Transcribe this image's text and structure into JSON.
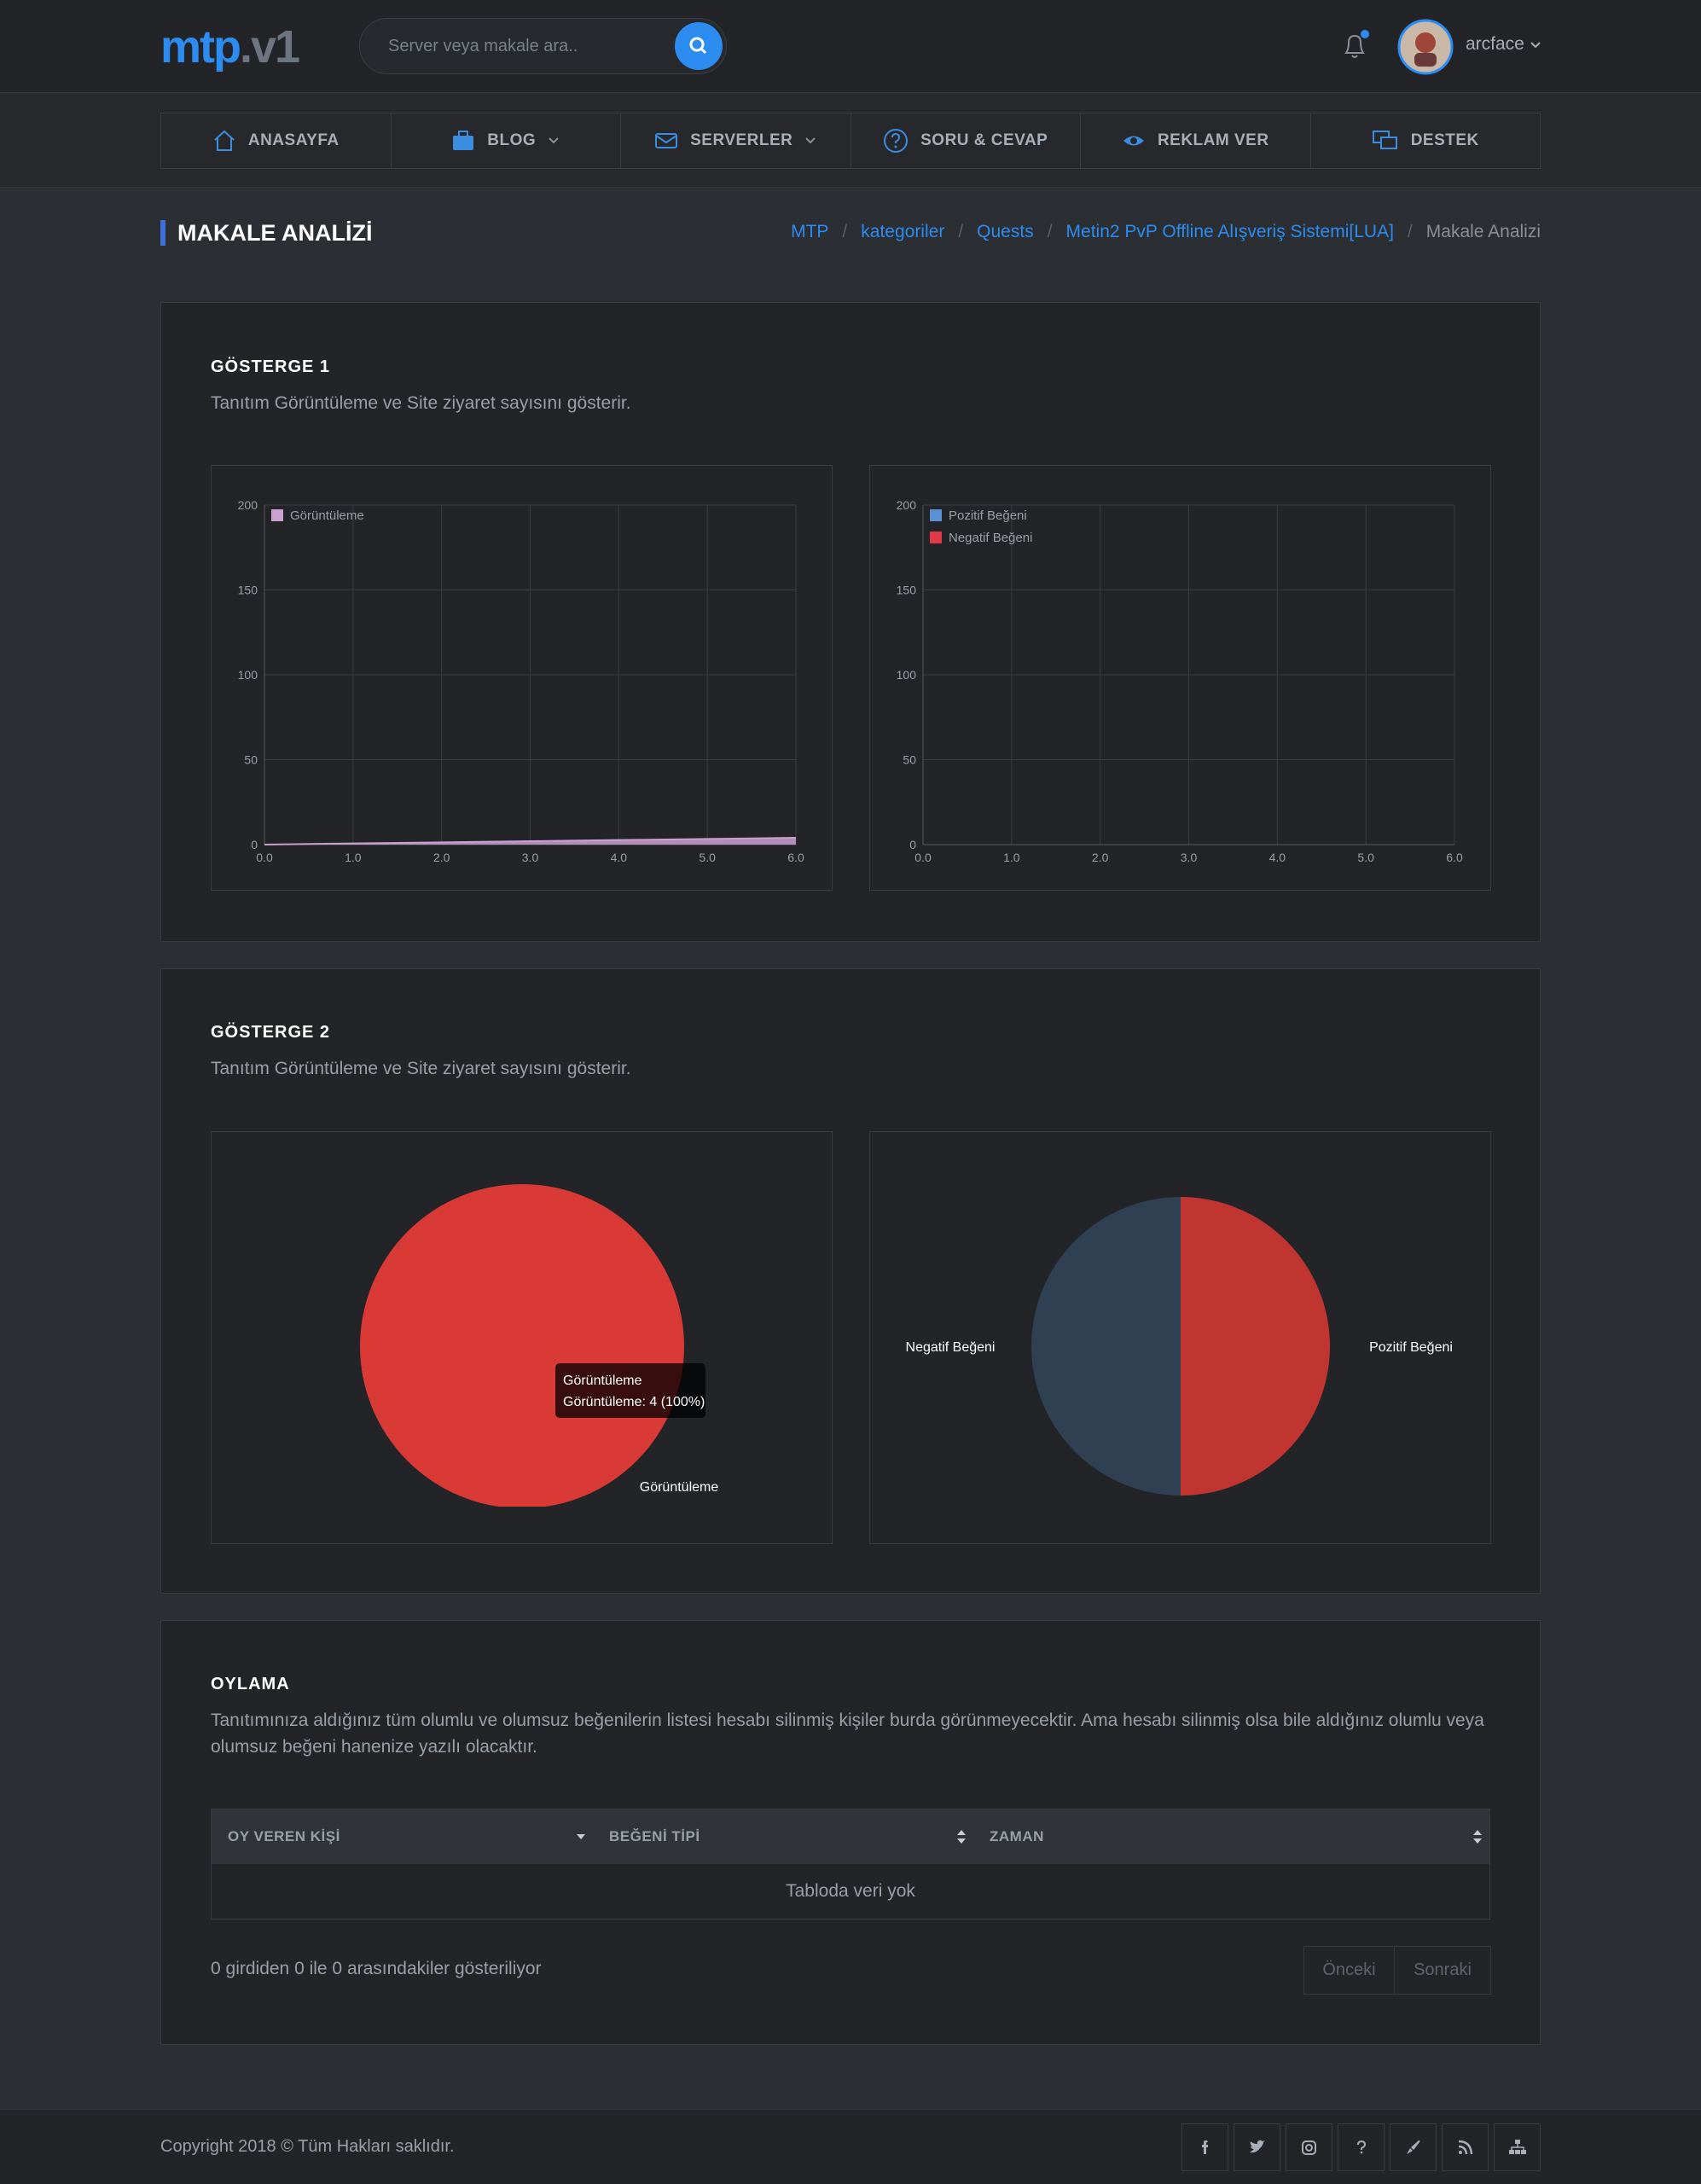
{
  "header": {
    "logo_main": "mtp",
    "logo_suffix": ".v1",
    "search_placeholder": "Server veya makale ara..",
    "user": "arcface"
  },
  "nav": [
    "ANASAYFA",
    "BLOG",
    "SERVERLER",
    "SORU & CEVAP",
    "REKLAM VER",
    "DESTEK"
  ],
  "page_title": "MAKALE ANALİZİ",
  "breadcrumb": [
    "MTP",
    "kategoriler",
    "Quests",
    "Metin2 PvP Offline Alışveriş Sistemi[LUA]",
    "Makale Analizi"
  ],
  "sections": [
    {
      "title": "GÖSTERGE 1",
      "description": "Tanıtım Görüntüleme ve Site ziyaret sayısını gösterir.",
      "charts": [
        {
          "type": "line",
          "x": [
            0,
            1,
            2,
            3,
            4,
            5,
            6
          ],
          "series": [
            {
              "name": "Görüntüleme",
              "color": "#c9a0cf",
              "values": [
                0,
                0.7,
                1.3,
                2,
                2.7,
                3.3,
                4
              ]
            }
          ],
          "xlim": [
            0,
            6
          ],
          "xticks": [
            {
              "value": 0,
              "label": "0.0"
            },
            {
              "value": 1,
              "label": "1.0"
            },
            {
              "value": 2,
              "label": "2.0"
            },
            {
              "value": 3,
              "label": "3.0"
            },
            {
              "value": 4,
              "label": "4.0"
            },
            {
              "value": 5,
              "label": "5.0"
            },
            {
              "value": 6,
              "label": "6.0"
            }
          ],
          "ylim": [
            0,
            200
          ],
          "yticks": [
            0,
            50,
            100,
            150,
            200
          ],
          "grid": true,
          "legend": "top-left"
        },
        {
          "type": "line",
          "series": [
            {
              "name": "Pozitif Beğeni",
              "color": "#5b8fd6"
            },
            {
              "name": "Negatif Beğeni",
              "color": "#e0394a"
            }
          ],
          "xlim": [
            0,
            6
          ],
          "xticks": [
            {
              "value": 0,
              "label": "0.0"
            },
            {
              "value": 1,
              "label": "1.0"
            },
            {
              "value": 2,
              "label": "2.0"
            },
            {
              "value": 3,
              "label": "3.0"
            },
            {
              "value": 4,
              "label": "4.0"
            },
            {
              "value": 5,
              "label": "5.0"
            },
            {
              "value": 6,
              "label": "6.0"
            }
          ],
          "ylim": [
            0,
            200
          ],
          "yticks": [
            0,
            50,
            100,
            150,
            200
          ],
          "grid": true,
          "legend": "top-left"
        }
      ]
    },
    {
      "title": "GÖSTERGE 2",
      "description": "Tanıtım Görüntüleme ve Site ziyaret sayısını gösterir.",
      "charts": [
        {
          "type": "pie",
          "categories": [
            "Görüntüleme"
          ],
          "values": [
            4
          ],
          "colors": [
            "#d93a35"
          ],
          "tooltip": {
            "title": "Görüntüleme",
            "body": "Görüntüleme: 4 (100%)"
          }
        },
        {
          "type": "pie",
          "categories": [
            "Pozitif Beğeni",
            "Negatif Beğeni"
          ],
          "values": [
            50,
            50
          ],
          "colors": [
            "#c0352f",
            "#2e4052"
          ]
        }
      ]
    }
  ],
  "voting": {
    "title": "OYLAMA",
    "description": "Tanıtımınıza aldığınız tüm olumlu ve olumsuz beğenilerin listesi hesabı silinmiş kişiler burda görünmeyecektir. Ama hesabı silinmiş olsa bile aldığınız olumlu veya olumsuz beğeni hanenize yazılı olacaktır.",
    "columns": [
      "OY VEREN KİŞİ",
      "BEĞENİ TİPİ",
      "ZAMAN"
    ],
    "empty": "Tabloda veri yok",
    "info": "0 girdiden 0 ile 0 arasındakiler gösteriliyor",
    "prev": "Önceki",
    "next": "Sonraki"
  },
  "footer": {
    "copyright": "Copyright 2018 © Tüm Hakları saklıdır."
  }
}
